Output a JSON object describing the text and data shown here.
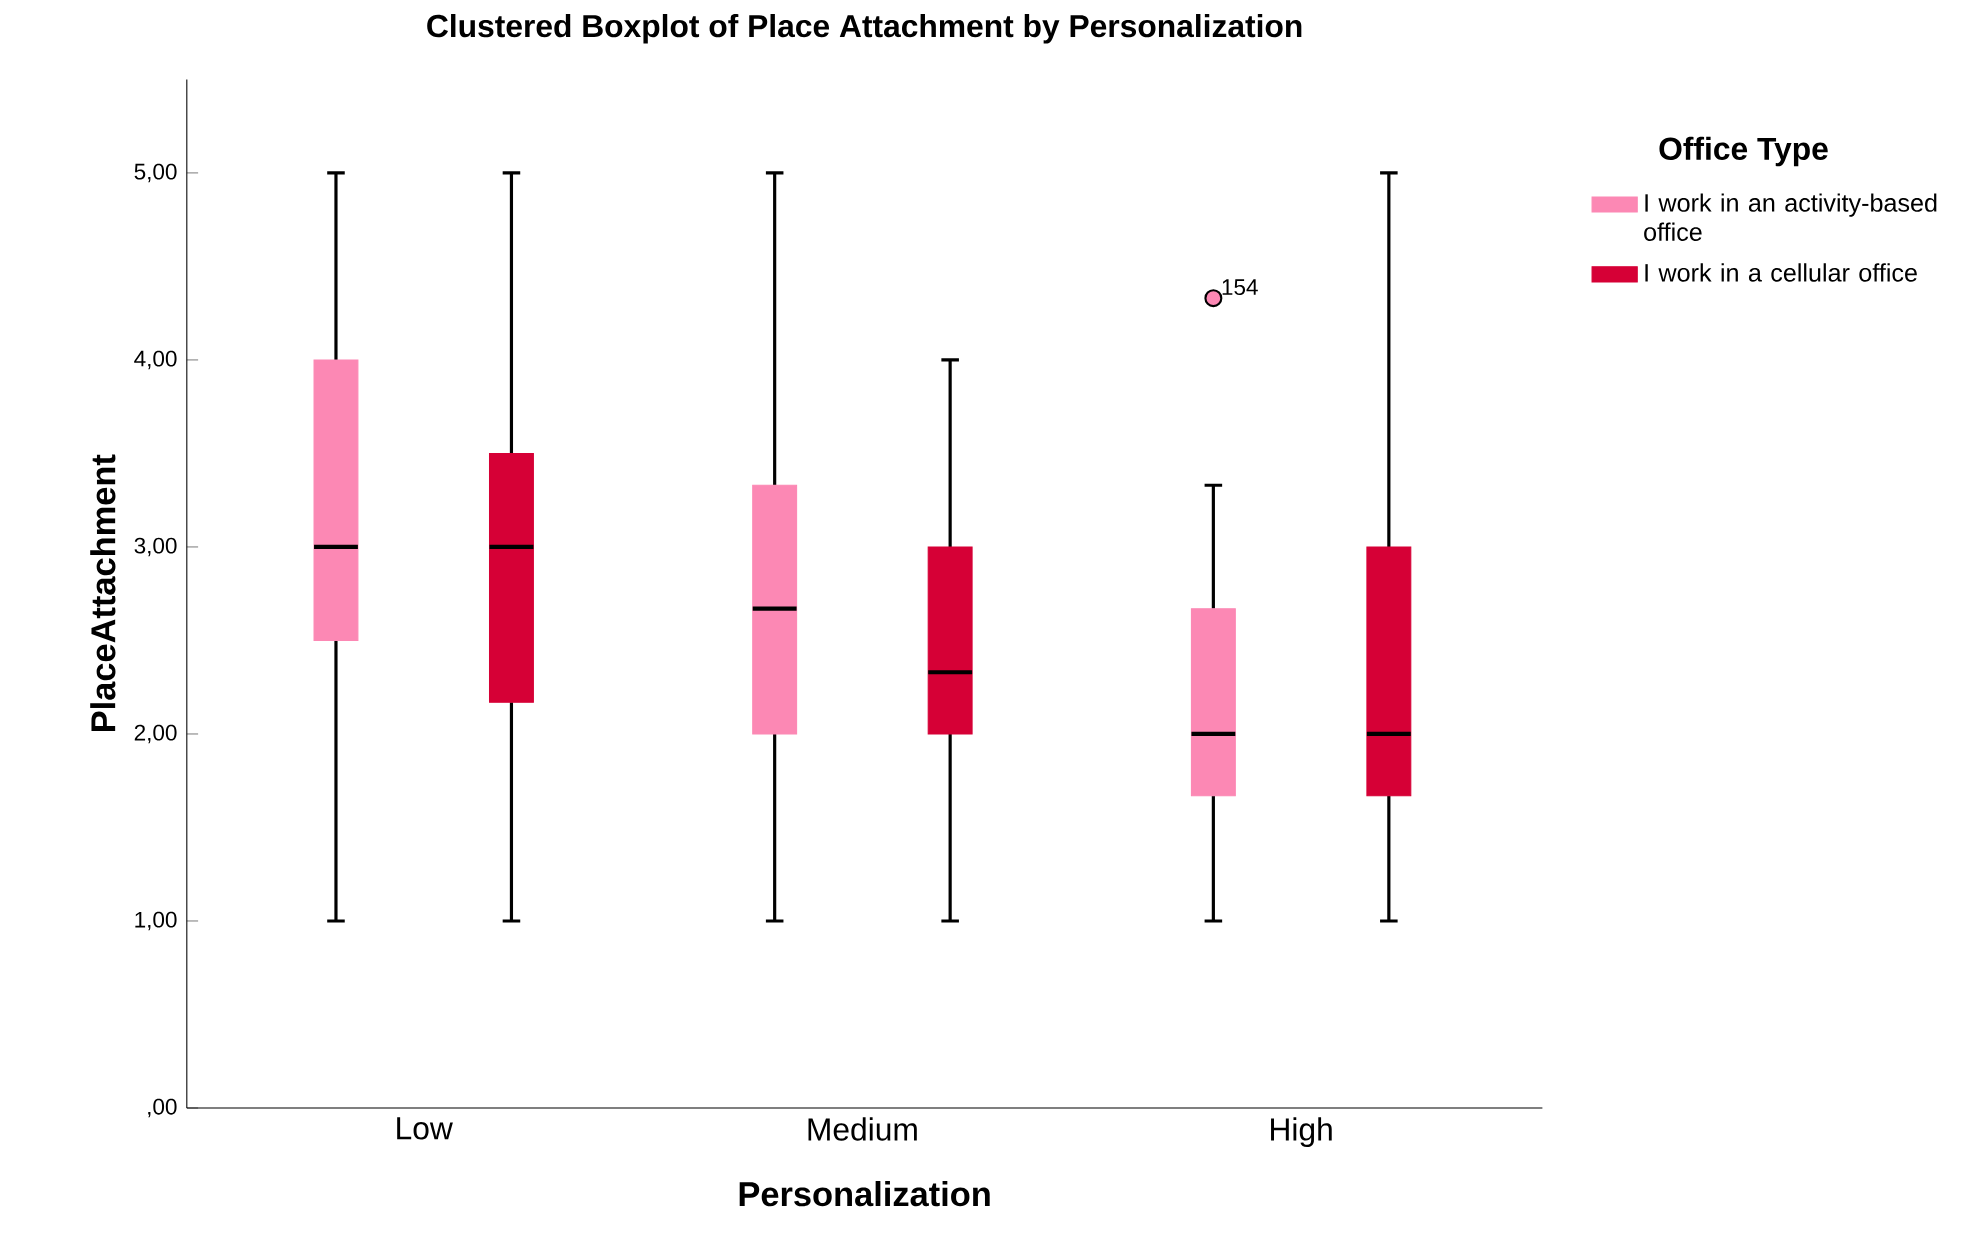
{
  "chart_data": {
    "type": "box",
    "title": "Clustered Boxplot of Place Attachment by Personalization",
    "xlabel": "Personalization",
    "ylabel": "PlaceAttachment",
    "legend_title": "Office Type",
    "legend": "right",
    "categories": [
      "Low",
      "Medium",
      "High"
    ],
    "ylim": [
      0,
      5.5
    ],
    "yticks": [
      {
        "value": 0,
        "label": ",00"
      },
      {
        "value": 1,
        "label": "1,00"
      },
      {
        "value": 2,
        "label": "2,00"
      },
      {
        "value": 3,
        "label": "3,00"
      },
      {
        "value": 4,
        "label": "4,00"
      },
      {
        "value": 5,
        "label": "5,00"
      }
    ],
    "series": [
      {
        "name": "I work in an activity-based office",
        "color": "#fc88b4",
        "boxes": [
          {
            "low": 1,
            "q1": 2.5,
            "median": 3,
            "q3": 4,
            "high": 5
          },
          {
            "low": 1,
            "q1": 2,
            "median": 2.67,
            "q3": 3.33,
            "high": 5
          },
          {
            "low": 1,
            "q1": 1.67,
            "median": 2,
            "q3": 2.67,
            "high": 3.33,
            "outliers": [
              4.33
            ]
          }
        ]
      },
      {
        "name": "I work in a cellular office",
        "color": "#d60036",
        "boxes": [
          {
            "low": 1,
            "q1": 2.17,
            "median": 3,
            "q3": 3.5,
            "high": 5
          },
          {
            "low": 1,
            "q1": 2,
            "median": 2.33,
            "q3": 3,
            "high": 4
          },
          {
            "low": 1,
            "q1": 1.67,
            "median": 2,
            "q3": 3,
            "high": 5
          }
        ]
      }
    ],
    "annotations": [
      "154"
    ]
  }
}
